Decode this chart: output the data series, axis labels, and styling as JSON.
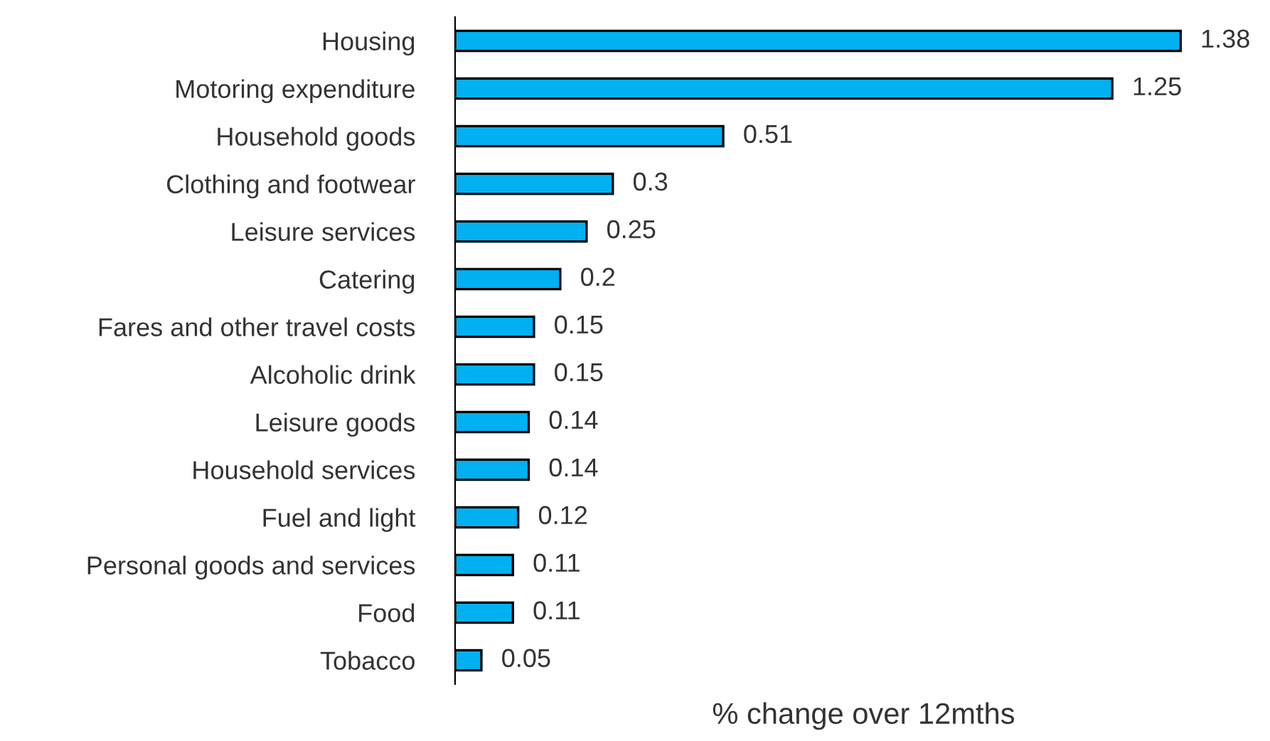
{
  "chart_data": {
    "type": "bar",
    "orientation": "horizontal",
    "xlabel": "% change over 12mths",
    "categories": [
      "Housing",
      "Motoring expenditure",
      "Household goods",
      "Clothing and footwear",
      "Leisure services",
      "Catering",
      "Fares and other travel costs",
      "Alcoholic drink",
      "Leisure goods",
      "Household services",
      "Fuel and light",
      "Personal goods and services",
      "Food",
      "Tobacco"
    ],
    "values": [
      1.38,
      1.25,
      0.51,
      0.3,
      0.25,
      0.2,
      0.15,
      0.15,
      0.14,
      0.14,
      0.12,
      0.11,
      0.11,
      0.05
    ],
    "color": "#00b0f0",
    "data_labels": true,
    "grid": false,
    "legend": false
  }
}
